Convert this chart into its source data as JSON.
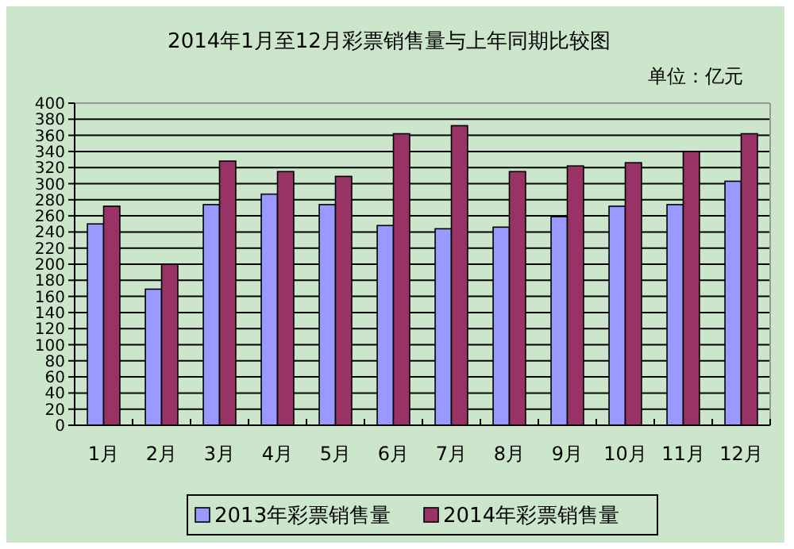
{
  "chart_data": {
    "type": "bar",
    "title": "2014年1月至12月彩票销售量与上年同期比较图",
    "annotations": [
      "单位：亿元"
    ],
    "categories": [
      "1月",
      "2月",
      "3月",
      "4月",
      "5月",
      "6月",
      "7月",
      "8月",
      "9月",
      "10月",
      "11月",
      "12月"
    ],
    "series": [
      {
        "name": "2013年彩票销售量",
        "color": "#9999ff",
        "values": [
          250,
          169,
          274,
          287,
          274,
          248,
          244,
          246,
          259,
          272,
          274,
          303
        ]
      },
      {
        "name": "2014年彩票销售量",
        "color": "#993366",
        "values": [
          272,
          200,
          328,
          315,
          309,
          362,
          372,
          315,
          322,
          326,
          340,
          362
        ]
      }
    ],
    "ylim": [
      0,
      400
    ],
    "yticks": [
      0,
      20,
      40,
      60,
      80,
      100,
      120,
      140,
      160,
      180,
      200,
      220,
      240,
      260,
      280,
      300,
      320,
      340,
      360,
      380,
      400
    ],
    "grid": "y",
    "legend": "bottom"
  }
}
